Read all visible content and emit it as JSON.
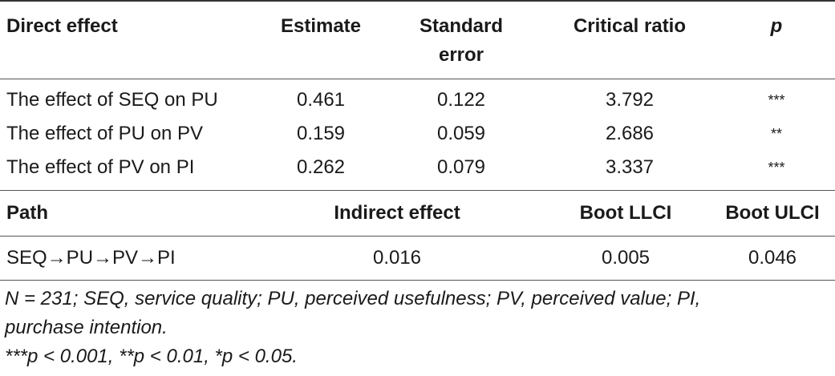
{
  "table1": {
    "headers": {
      "direct_effect": "Direct effect",
      "estimate": "Estimate",
      "standard_error_line1": "Standard",
      "standard_error_line2": "error",
      "critical_ratio": "Critical ratio",
      "p": "p"
    },
    "rows": [
      {
        "effect": "The effect of SEQ on PU",
        "estimate": "0.461",
        "se": "0.122",
        "cr": "3.792",
        "p": "***"
      },
      {
        "effect": "The effect of PU on PV",
        "estimate": "0.159",
        "se": "0.059",
        "cr": "2.686",
        "p": "**"
      },
      {
        "effect": "The effect of PV on PI",
        "estimate": "0.262",
        "se": "0.079",
        "cr": "3.337",
        "p": "***"
      }
    ]
  },
  "table2": {
    "headers": {
      "path": "Path",
      "indirect_effect": "Indirect effect",
      "boot_llci": "Boot LLCI",
      "boot_ulci": "Boot ULCI"
    },
    "rows": [
      {
        "path": "SEQ→PU→PV→PI",
        "indirect": "0.016",
        "llci": "0.005",
        "ulci": "0.046"
      }
    ]
  },
  "notes": {
    "line1": "N = 231; SEQ, service quality; PU, perceived usefulness; PV, perceived value; PI,",
    "line2": "purchase intention.",
    "line3": "***p < 0.001, **p < 0.01, *p < 0.05."
  }
}
